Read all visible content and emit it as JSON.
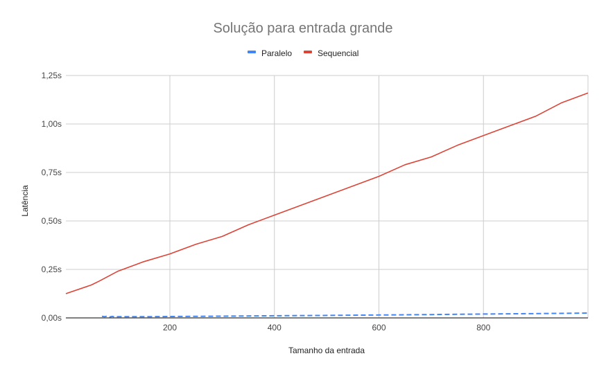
{
  "chart_data": {
    "type": "line",
    "title": "Solução para entrada grande",
    "xlabel": "Tamanho da entrada",
    "ylabel": "Latência",
    "xlim": [
      1,
      1000
    ],
    "ylim": [
      0,
      1.25
    ],
    "x_ticks": [
      200,
      400,
      600,
      800
    ],
    "x_tick_labels": [
      "200",
      "400",
      "600",
      "800"
    ],
    "y_ticks": [
      0,
      0.25,
      0.5,
      0.75,
      1.0,
      1.25
    ],
    "y_tick_labels": [
      "0,00s",
      "0,25s",
      "0,50s",
      "0,75s",
      "1,00s",
      "1,25s"
    ],
    "grid": true,
    "legend_position": "top",
    "series": [
      {
        "name": "Paralelo",
        "color": "#4285f4",
        "style": "dashed",
        "x": [
          70,
          75,
          80,
          85,
          90,
          95,
          100,
          150,
          200,
          300,
          400,
          500,
          600,
          700,
          800,
          900,
          1000
        ],
        "y": [
          0.008,
          0.006,
          0.009,
          0.005,
          0.008,
          0.004,
          0.006,
          0.006,
          0.007,
          0.009,
          0.011,
          0.013,
          0.015,
          0.017,
          0.02,
          0.022,
          0.025
        ]
      },
      {
        "name": "Sequencial",
        "color": "#db4437",
        "style": "solid",
        "x": [
          1,
          50,
          65,
          100,
          150,
          200,
          250,
          300,
          350,
          400,
          450,
          500,
          550,
          600,
          650,
          700,
          750,
          800,
          850,
          900,
          950,
          1000
        ],
        "y": [
          0.125,
          0.17,
          0.19,
          0.24,
          0.29,
          0.33,
          0.38,
          0.42,
          0.48,
          0.53,
          0.58,
          0.63,
          0.68,
          0.73,
          0.79,
          0.83,
          0.89,
          0.94,
          0.99,
          1.04,
          1.11,
          1.16
        ]
      }
    ]
  }
}
